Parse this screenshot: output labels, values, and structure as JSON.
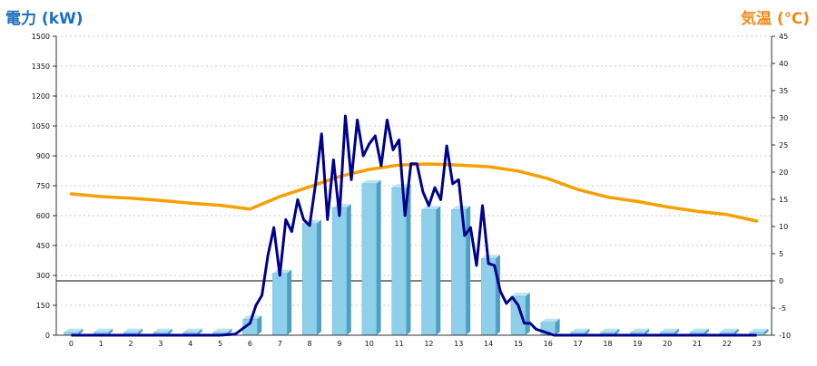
{
  "chart_data": {
    "type": "bar",
    "left_axis_title": "電力 (kW)",
    "right_axis_title": "気温 (℃)",
    "categories": [
      "0",
      "1",
      "2",
      "3",
      "4",
      "5",
      "6",
      "7",
      "8",
      "9",
      "10",
      "11",
      "12",
      "13",
      "14",
      "15",
      "16",
      "17",
      "18",
      "19",
      "20",
      "21",
      "22",
      "23"
    ],
    "y_left": {
      "min": 0,
      "max": 1500,
      "ticks": [
        0,
        150,
        300,
        450,
        600,
        750,
        900,
        1050,
        1200,
        1350,
        1500
      ]
    },
    "y_right": {
      "min": -10,
      "max": 45,
      "ticks": [
        -10,
        -5,
        0,
        5,
        10,
        15,
        20,
        25,
        30,
        35,
        40,
        45
      ]
    },
    "grid": true,
    "bar_series": {
      "name": "",
      "color": "#8ecfe9",
      "values": [
        15,
        15,
        15,
        15,
        15,
        15,
        80,
        310,
        560,
        640,
        760,
        740,
        630,
        630,
        385,
        195,
        65,
        15,
        15,
        15,
        15,
        15,
        15,
        15
      ]
    },
    "power_line": {
      "name": "",
      "color": "#00008b",
      "x": [
        0,
        1,
        2,
        3,
        4,
        5,
        5.5,
        6,
        6.2,
        6.4,
        6.6,
        6.8,
        7,
        7.2,
        7.4,
        7.6,
        7.8,
        8,
        8.2,
        8.4,
        8.6,
        8.8,
        9,
        9.2,
        9.4,
        9.6,
        9.8,
        10,
        10.2,
        10.4,
        10.6,
        10.8,
        11,
        11.2,
        11.4,
        11.6,
        11.8,
        12,
        12.2,
        12.4,
        12.6,
        12.8,
        13,
        13.2,
        13.4,
        13.6,
        13.8,
        14,
        14.2,
        14.4,
        14.6,
        14.8,
        15,
        15.2,
        15.4,
        15.6,
        15.8,
        16,
        16.2,
        16.4,
        17,
        18,
        19,
        20,
        21,
        22,
        23
      ],
      "y": [
        0,
        0,
        0,
        0,
        0,
        0,
        5,
        60,
        150,
        200,
        400,
        540,
        300,
        580,
        520,
        680,
        580,
        550,
        760,
        1010,
        580,
        880,
        600,
        1100,
        780,
        1080,
        900,
        960,
        1000,
        850,
        1080,
        930,
        980,
        600,
        860,
        860,
        720,
        650,
        740,
        680,
        950,
        760,
        780,
        500,
        540,
        350,
        650,
        360,
        350,
        220,
        160,
        190,
        150,
        60,
        60,
        30,
        20,
        10,
        0,
        0,
        0,
        0,
        0,
        0,
        0,
        0,
        0
      ]
    },
    "temperature_line": {
      "name": "",
      "color": "#f5a000",
      "x": [
        0,
        1,
        2,
        3,
        4,
        5,
        6,
        7,
        8,
        9,
        10,
        11,
        12,
        13,
        14,
        15,
        16,
        17,
        18,
        19,
        20,
        21,
        22,
        23
      ],
      "y": [
        16,
        15.5,
        15.2,
        14.8,
        14.3,
        13.9,
        13.2,
        15.5,
        17.3,
        19.2,
        20.5,
        21.3,
        21.5,
        21.3,
        21.0,
        20.2,
        18.8,
        16.8,
        15.4,
        14.6,
        13.6,
        12.8,
        12.2,
        11.0
      ]
    }
  }
}
